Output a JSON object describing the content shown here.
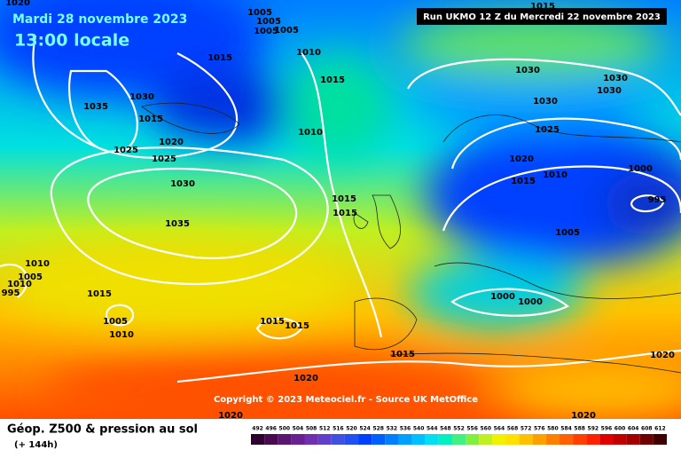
{
  "header": {
    "date": "Mardi 28 novembre 2023",
    "time": "13:00 locale",
    "run": "Run UKMO 12 Z du Mercredi 22 novembre 2023"
  },
  "copyright": "Copyright © 2023 Meteociel.fr - Source UK MetOffice",
  "footer": {
    "title": "Géop. Z500 & pression au sol",
    "lead": "(+ 144h)"
  },
  "isobar_labels": [
    "1020",
    "1005",
    "1005",
    "1005",
    "1005",
    "1015",
    "1010",
    "1015",
    "1030",
    "1035",
    "1015",
    "1010",
    "1020",
    "1025",
    "1025",
    "1030",
    "1035",
    "1015",
    "1015",
    "1010",
    "1005",
    "1010",
    "995",
    "1015",
    "1005",
    "1010",
    "1015",
    "1015",
    "1015",
    "1020",
    "1020",
    "1015",
    "1030",
    "1030",
    "1030",
    "1030",
    "1025",
    "1020",
    "1015",
    "1010",
    "1000",
    "995",
    "1005",
    "1000",
    "1000",
    "1020",
    "1020"
  ],
  "colorbar": {
    "ticks": [
      492,
      496,
      500,
      504,
      508,
      512,
      516,
      520,
      524,
      528,
      532,
      536,
      540,
      544,
      548,
      552,
      556,
      560,
      564,
      568,
      572,
      576,
      580,
      584,
      588,
      592,
      596,
      600,
      604,
      608,
      612
    ],
    "colors": [
      "#2d0030",
      "#4a0a50",
      "#5a1670",
      "#6a2090",
      "#7030b0",
      "#6040c8",
      "#4050e0",
      "#2050f0",
      "#0040ff",
      "#0060ff",
      "#0080ff",
      "#00a0ff",
      "#00c0ff",
      "#00e0f0",
      "#00f0c0",
      "#40f080",
      "#80f040",
      "#c0f020",
      "#f0f000",
      "#ffe000",
      "#ffc000",
      "#ffa000",
      "#ff8000",
      "#ff6000",
      "#ff4000",
      "#ff2000",
      "#e00000",
      "#c00000",
      "#a00000",
      "#700000",
      "#400000"
    ]
  }
}
